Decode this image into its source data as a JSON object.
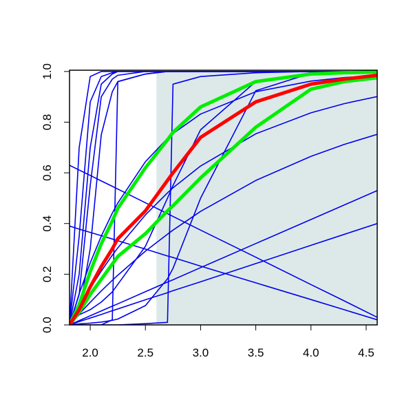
{
  "chart_data": {
    "type": "line",
    "x": [
      1.8125,
      1.9,
      2.0,
      2.1,
      2.2,
      2.25,
      2.5,
      2.7,
      2.75,
      3.0,
      3.5,
      4.0,
      4.3,
      4.6
    ],
    "xlim": [
      1.8125,
      4.6
    ],
    "ylim": [
      0,
      1.005
    ],
    "xticks": [
      {
        "value": 2,
        "label": "2.0"
      },
      2.5,
      {
        "value": 3,
        "label": "3.0"
      },
      3.5,
      {
        "value": 4,
        "label": "4.0"
      },
      4.5
    ],
    "yticks": [
      {
        "value": 0,
        "label": "0.0"
      },
      0.2,
      0.4,
      0.6,
      0.8,
      {
        "value": 1,
        "label": "1.0"
      }
    ],
    "shaded_region": {
      "xlim": [
        2.6,
        4.6
      ],
      "ylim": [
        0,
        1
      ],
      "color": "#dde9e9"
    },
    "series": [
      {
        "color": "#0000ee",
        "values": [
          0,
          0.7,
          0.98,
          1,
          1,
          1,
          1,
          1,
          1,
          1,
          1,
          1,
          1,
          1
        ]
      },
      {
        "color": "#0000ee",
        "values": [
          0,
          0.35,
          0.88,
          0.98,
          0.995,
          1,
          1,
          1,
          1,
          1,
          1,
          1,
          1,
          1
        ]
      },
      {
        "color": "#0000ee",
        "values": [
          0,
          0.2,
          0.7,
          0.95,
          0.99,
          1,
          1,
          1,
          1,
          1,
          1,
          1,
          1,
          1
        ]
      },
      {
        "color": "#0000ee",
        "values": [
          0,
          0.12,
          0.55,
          0.9,
          0.97,
          0.985,
          1,
          1,
          1,
          1,
          1,
          1,
          1,
          1
        ]
      },
      {
        "color": "#0000ee",
        "values": [
          0,
          0.05,
          0.3,
          0.75,
          0.92,
          0.96,
          0.99,
          1,
          1,
          1,
          1,
          1,
          1,
          1
        ]
      },
      {
        "color": "#0000ee",
        "values": [
          0,
          0,
          0,
          0,
          0.02,
          0.96,
          0.99,
          1,
          1,
          1,
          1,
          1,
          1,
          1
        ]
      },
      {
        "color": "#0000ee",
        "values": [
          0,
          0,
          0,
          0,
          0,
          0,
          0.005,
          0.01,
          0.95,
          0.98,
          0.995,
          1,
          1,
          1
        ]
      },
      {
        "color": "#0000ee",
        "values": [
          0,
          0.004,
          0.007,
          0.011,
          0.018,
          0.023,
          0.076,
          0.182,
          0.223,
          0.5,
          0.924,
          0.993,
          0.998,
          1
        ]
      },
      {
        "color": "#0000ee",
        "values": [
          0,
          0.04,
          0.06,
          0.09,
          0.13,
          0.16,
          0.31,
          0.5,
          0.55,
          0.77,
          0.96,
          0.995,
          1,
          1
        ]
      },
      {
        "color": "#0000ee",
        "values": [
          0,
          0.123,
          0.245,
          0.35,
          0.441,
          0.481,
          0.644,
          0.736,
          0.755,
          0.832,
          0.92,
          0.962,
          0.976,
          0.985
        ]
      },
      {
        "color": "#0000ee",
        "values": [
          0,
          0.07,
          0.144,
          0.212,
          0.275,
          0.304,
          0.434,
          0.521,
          0.541,
          0.627,
          0.754,
          0.837,
          0.873,
          0.901
        ]
      },
      {
        "color": "#0000ee",
        "values": [
          0,
          0.043,
          0.089,
          0.134,
          0.176,
          0.196,
          0.291,
          0.358,
          0.374,
          0.448,
          0.57,
          0.665,
          0.712,
          0.752
        ]
      },
      {
        "color": "#0000ee",
        "values": [
          0,
          0.017,
          0.036,
          0.055,
          0.074,
          0.083,
          0.131,
          0.169,
          0.178,
          0.226,
          0.321,
          0.416,
          0.473,
          0.53
        ]
      },
      {
        "color": "#0000ee",
        "values": [
          0,
          0.013,
          0.027,
          0.041,
          0.056,
          0.063,
          0.099,
          0.127,
          0.135,
          0.17,
          0.242,
          0.314,
          0.357,
          0.4
        ]
      },
      {
        "color": "#0000ee",
        "values": [
          0.63,
          0.611,
          0.59,
          0.568,
          0.547,
          0.536,
          0.482,
          0.439,
          0.428,
          0.374,
          0.267,
          0.159,
          0.095,
          0.03
        ]
      },
      {
        "color": "#0000ee",
        "values": [
          0.39,
          0.378,
          0.365,
          0.352,
          0.339,
          0.332,
          0.299,
          0.272,
          0.266,
          0.232,
          0.166,
          0.1,
          0.06,
          0.02
        ]
      },
      {
        "color": "#00ee00",
        "width": 5,
        "values": [
          0,
          0.08,
          0.21,
          0.32,
          0.41,
          0.46,
          0.62,
          0.73,
          0.76,
          0.86,
          0.96,
          0.99,
          0.995,
          0.998
        ]
      },
      {
        "color": "#00ee00",
        "width": 5,
        "values": [
          0,
          0.05,
          0.12,
          0.18,
          0.24,
          0.27,
          0.36,
          0.45,
          0.47,
          0.58,
          0.78,
          0.93,
          0.96,
          0.975
        ]
      },
      {
        "color": "#ff0000",
        "width": 5,
        "values": [
          0,
          0.06,
          0.15,
          0.23,
          0.3,
          0.34,
          0.45,
          0.57,
          0.6,
          0.74,
          0.88,
          0.95,
          0.97,
          0.985
        ]
      }
    ]
  }
}
